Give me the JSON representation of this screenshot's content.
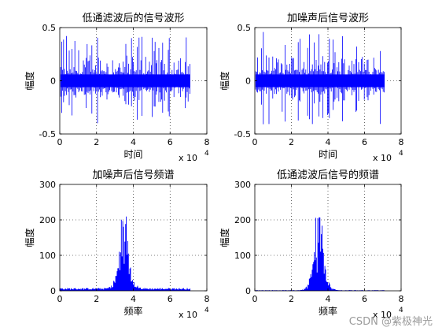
{
  "watermark": "CSDN @紫极神光",
  "colors": {
    "series": "#0000ff",
    "axes": "#000000",
    "grid": "#000000",
    "background": "#ffffff"
  },
  "chart_data": [
    {
      "type": "line",
      "title": "低通滤波后的信号波形",
      "xlabel": "时间",
      "ylabel": "幅度",
      "x_exponent_base": "x 10",
      "x_exponent_power": "4",
      "xlim": [
        0,
        8
      ],
      "ylim": [
        -0.5,
        0.5
      ],
      "xticks": [
        "0",
        "2",
        "4",
        "6",
        "8"
      ],
      "yticks": [
        "-0.5",
        "0",
        "0.5"
      ],
      "grid": true,
      "signal": {
        "kind": "waveform",
        "x_range": [
          0.05,
          7.1
        ],
        "amplitude_max": 0.47,
        "amplitude_min": -0.4,
        "core_band": 0.06
      }
    },
    {
      "type": "line",
      "title": "加噪声后信号波形",
      "xlabel": "时间",
      "ylabel": "幅度",
      "x_exponent_base": "x 10",
      "x_exponent_power": "4",
      "xlim": [
        0,
        8
      ],
      "ylim": [
        -0.5,
        0.5
      ],
      "xticks": [
        "0",
        "2",
        "4",
        "6",
        "8"
      ],
      "yticks": [
        "-0.5",
        "0",
        "0.5"
      ],
      "grid": true,
      "signal": {
        "kind": "waveform",
        "x_range": [
          0.05,
          7.1
        ],
        "amplitude_max": 0.47,
        "amplitude_min": -0.42,
        "core_band": 0.06
      }
    },
    {
      "type": "line",
      "title": "加噪声后信号频谱",
      "xlabel": "频率",
      "ylabel": "幅度",
      "x_exponent_base": "x 10",
      "x_exponent_power": "4",
      "xlim": [
        0,
        8
      ],
      "ylim": [
        0,
        300
      ],
      "xticks": [
        "0",
        "2",
        "4",
        "6",
        "8"
      ],
      "yticks": [
        "0",
        "100",
        "200",
        "300"
      ],
      "grid": true,
      "signal": {
        "kind": "spectrum",
        "x_range": [
          0,
          7.1
        ],
        "center": 3.5,
        "peak": 215,
        "width": 0.35,
        "floor": 8
      }
    },
    {
      "type": "line",
      "title": "低通滤波后信号的频谱",
      "xlabel": "频率",
      "ylabel": "幅度",
      "x_exponent_base": "x 10",
      "x_exponent_power": "4",
      "xlim": [
        0,
        8
      ],
      "ylim": [
        0,
        300
      ],
      "xticks": [
        "0",
        "2",
        "4",
        "6",
        "8"
      ],
      "yticks": [
        "0",
        "100",
        "200",
        "300"
      ],
      "grid": true,
      "signal": {
        "kind": "spectrum",
        "x_range": [
          0,
          7.1
        ],
        "center": 3.5,
        "peak": 215,
        "width": 0.35,
        "floor": 2
      }
    }
  ]
}
